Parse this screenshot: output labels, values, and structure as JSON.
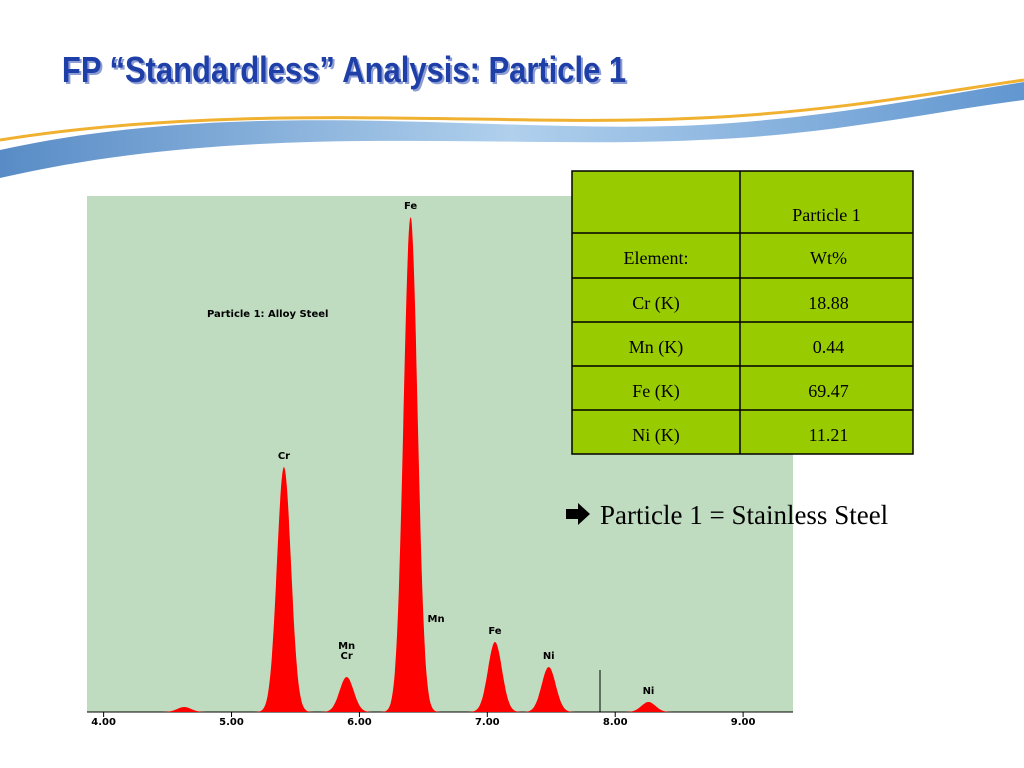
{
  "title": "FP “Standardless” Analysis:  Particle 1",
  "chart_data": {
    "type": "spectrum",
    "annotation": "Particle 1:  Alloy Steel",
    "x": [
      4.63,
      5.41,
      5.9,
      6.4,
      6.49,
      7.06,
      7.48,
      8.26
    ],
    "values": [
      1,
      49,
      7,
      99,
      null,
      14,
      9,
      2
    ],
    "labels": [
      null,
      "Cr",
      [
        "Mn",
        "Cr"
      ],
      "Fe",
      "Mn",
      "Fe",
      "Ni",
      "Ni"
    ],
    "color": "#ff0000",
    "xlim": [
      3.87,
      9.39
    ],
    "xticks": [
      {
        "value": 4,
        "label": "4.00"
      },
      {
        "value": 5,
        "label": "5.00"
      },
      {
        "value": 6,
        "label": "6.00"
      },
      {
        "value": 7,
        "label": "7.00"
      },
      {
        "value": 8,
        "label": "8.00"
      },
      {
        "value": 9,
        "label": "9.00"
      }
    ],
    "ylim": [
      0,
      100
    ]
  },
  "table": {
    "column": "Particle 1",
    "rows": [
      [
        "Element:",
        "Wt%"
      ],
      [
        "Cr (K)",
        18.88
      ],
      [
        "Mn (K)",
        0.44
      ],
      [
        "Fe (K)",
        69.47
      ],
      [
        "Ni (K)",
        11.21
      ]
    ]
  },
  "conclusion": "Particle 1 = Stainless Steel"
}
